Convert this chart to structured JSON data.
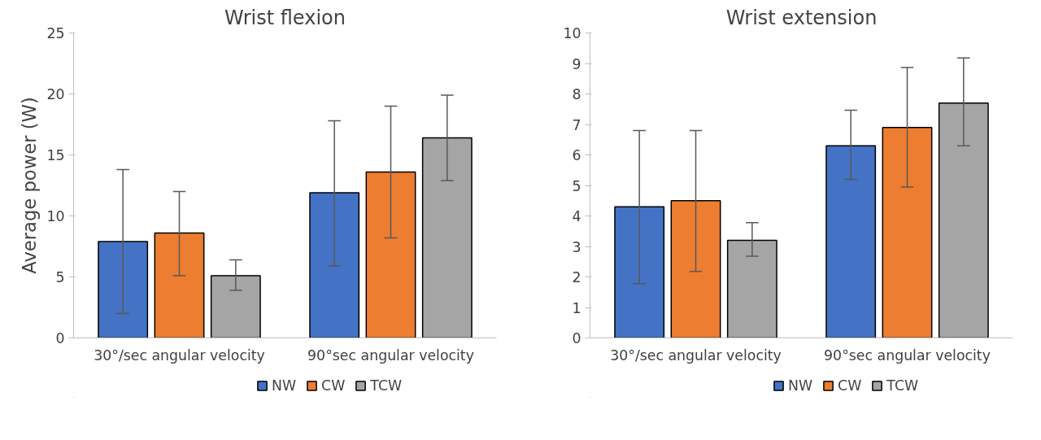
{
  "chart_data": [
    {
      "type": "bar",
      "title": "Wrist flexion",
      "ylabel": "Average power (W)",
      "categories": [
        "30°/sec angular velocity",
        "90°sec angular velocity"
      ],
      "ylim": [
        0,
        25
      ],
      "yticks": [
        0,
        5,
        10,
        15,
        20,
        25
      ],
      "grid": false,
      "legend": "bottom",
      "series": [
        {
          "name": "NW",
          "color": "#4472c4",
          "values": [
            7.9,
            11.9
          ],
          "errors": [
            [
              2.0,
              13.8
            ],
            [
              5.9,
              17.8
            ]
          ]
        },
        {
          "name": "CW",
          "color": "#ed7d31",
          "values": [
            8.6,
            13.6
          ],
          "errors": [
            [
              5.1,
              12.0
            ],
            [
              8.2,
              19.0
            ]
          ]
        },
        {
          "name": "TCW",
          "color": "#a5a5a5",
          "values": [
            5.1,
            16.4
          ],
          "errors": [
            [
              3.9,
              6.4
            ],
            [
              12.9,
              19.9
            ]
          ]
        }
      ]
    },
    {
      "type": "bar",
      "title": "Wrist extension",
      "categories": [
        "30°/sec angular velocity",
        "90°sec angular velocity"
      ],
      "ylim": [
        0,
        10
      ],
      "yticks": [
        0,
        1,
        2,
        3,
        4,
        5,
        6,
        7,
        8,
        9,
        10
      ],
      "grid": false,
      "legend": "bottom",
      "series": [
        {
          "name": "NW",
          "color": "#4472c4",
          "values": [
            4.3,
            6.3
          ],
          "errors": [
            [
              1.78,
              6.8
            ],
            [
              5.2,
              7.47
            ]
          ]
        },
        {
          "name": "CW",
          "color": "#ed7d31",
          "values": [
            4.5,
            6.9
          ],
          "errors": [
            [
              2.18,
              6.8
            ],
            [
              4.95,
              8.87
            ]
          ]
        },
        {
          "name": "TCW",
          "color": "#a5a5a5",
          "values": [
            3.2,
            7.7
          ],
          "errors": [
            [
              2.68,
              3.78
            ],
            [
              6.3,
              9.18
            ]
          ]
        }
      ]
    }
  ]
}
